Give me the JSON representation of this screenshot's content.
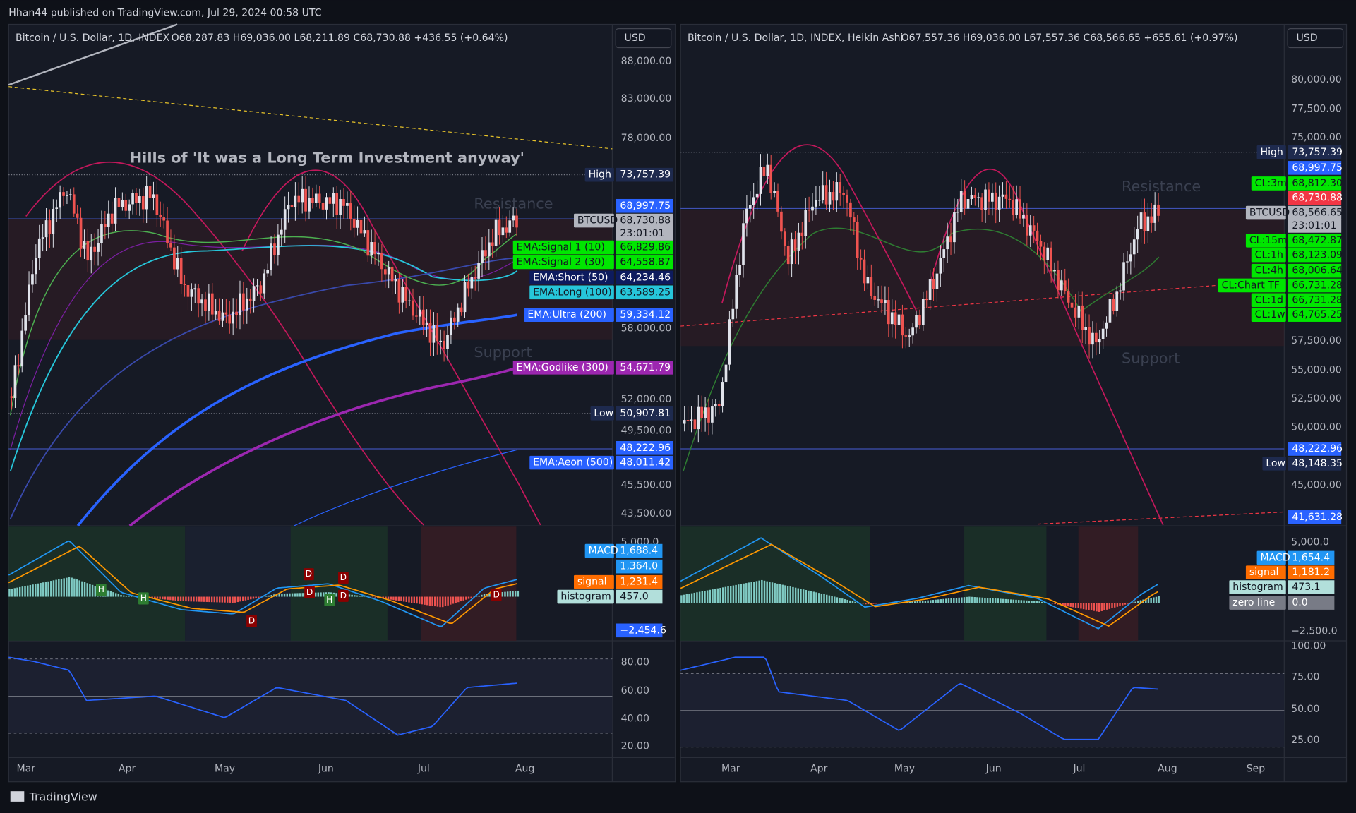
{
  "header": {
    "publisher": "Hhan44 published on TradingView.com, Jul 29, 2024 00:58 UTC"
  },
  "footer": {
    "brand": "TradingView"
  },
  "left": {
    "legend": "Bitcoin / U.S. Dollar, 1D, INDEX",
    "ohlc": "O68,287.83  H69,036.00  L68,211.89  C68,730.88  +436.55 (+0.64%)",
    "currency": "USD",
    "annotation": "Hills of 'It was a Long Term Investment anyway'",
    "resistance": "Resistance",
    "support": "Support",
    "price_axis": [
      "88,000.00",
      "83,000.00",
      "78,000.00",
      "58,000.00",
      "52,000.00",
      "49,500.00",
      "45,500.00",
      "43,500.00"
    ],
    "tags": [
      {
        "label": "High",
        "value": "73,757.39"
      },
      {
        "value": "68,997.75"
      },
      {
        "label": "BTCUSD",
        "value": "68,730.88"
      },
      {
        "label": "EMA:Signal 1 (10)",
        "value": "66,829.86"
      },
      {
        "label": "EMA:Signal 2 (30)",
        "value": "64,558.87"
      },
      {
        "label": "EMA:Short (50)",
        "value": "64,234.46"
      },
      {
        "label": "EMA:Long (100)",
        "value": "63,589.25"
      },
      {
        "label": "EMA:Ultra (200)",
        "value": "59,334.12"
      },
      {
        "label": "EMA:Godlike (300)",
        "value": "54,671.79"
      },
      {
        "label": "Low",
        "value": "50,907.81"
      },
      {
        "value": "48,222.96"
      },
      {
        "label": "EMA:Aeon (500)",
        "value": "48,011.42"
      }
    ],
    "countdown": "23:01:01",
    "macd_axis": [
      "5,000.0"
    ],
    "macd_tags": [
      {
        "label": "MACD",
        "value": "1,688.4"
      },
      {
        "value": "1,364.0"
      },
      {
        "label": "signal",
        "value": "1,231.4"
      },
      {
        "label": "histogram",
        "value": "457.0"
      },
      {
        "value": "−2,454.6"
      }
    ],
    "markers": [
      "H",
      "H",
      "H",
      "D",
      "D",
      "D",
      "D",
      "D",
      "D"
    ],
    "rsi_axis": [
      "80.00",
      "60.00",
      "40.00",
      "20.00"
    ],
    "time_axis": [
      "Mar",
      "Apr",
      "May",
      "Jun",
      "Jul",
      "Aug"
    ]
  },
  "right": {
    "legend": "Bitcoin / U.S. Dollar, 1D, INDEX, Heikin Ashi",
    "ohlc": "O67,557.36  H69,036.00  L67,557.36  C68,566.65  +655.61 (+0.97%)",
    "currency": "USD",
    "resistance": "Resistance",
    "support": "Support",
    "price_axis": [
      "80,000.00",
      "77,500.00",
      "75,000.00",
      "57,500.00",
      "55,000.00",
      "52,500.00",
      "50,000.00",
      "45,000.00"
    ],
    "tags": [
      {
        "label": "High",
        "value": "73,757.39"
      },
      {
        "value": "68,997.75"
      },
      {
        "label": "CL:3m",
        "value": "68,812.30"
      },
      {
        "value": "68,730.88"
      },
      {
        "label": "BTCUSD",
        "value": "68,566.65"
      },
      {
        "label": "CL:15m",
        "value": "68,472.87"
      },
      {
        "label": "CL:1h",
        "value": "68,123.09"
      },
      {
        "label": "CL:4h",
        "value": "68,006.64"
      },
      {
        "label": "CL:Chart TF",
        "value": "66,731.28"
      },
      {
        "label": "CL:1d",
        "value": "66,731.28"
      },
      {
        "label": "CL:1w",
        "value": "64,765.25"
      },
      {
        "value": "48,222.96"
      },
      {
        "label": "Low",
        "value": "48,148.35"
      },
      {
        "value": "41,631.28"
      }
    ],
    "countdown": "23:01:01",
    "macd_axis": [
      "5,000.0",
      "−2,500.0"
    ],
    "macd_tags": [
      {
        "label": "MACD",
        "value": "1,654.4"
      },
      {
        "label": "signal",
        "value": "1,181.2"
      },
      {
        "label": "histogram",
        "value": "473.1"
      },
      {
        "label": "zero line",
        "value": "0.0"
      }
    ],
    "rsi_axis": [
      "100.00",
      "75.00",
      "50.00",
      "25.00"
    ],
    "time_axis": [
      "Mar",
      "Apr",
      "May",
      "Jun",
      "Jul",
      "Aug",
      "Sep"
    ]
  }
}
